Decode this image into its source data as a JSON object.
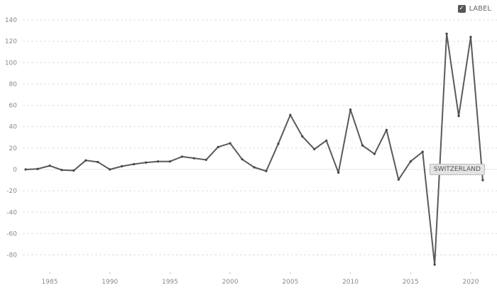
{
  "legend": {
    "label": "LABEL",
    "checked": true
  },
  "tooltip": "SWITZERLAND",
  "chart_data": {
    "type": "line",
    "title": "",
    "xlabel": "",
    "ylabel": "",
    "ylim": [
      -97,
      145
    ],
    "xlim": [
      1983,
      2021.5
    ],
    "grid": true,
    "yticks": [
      140,
      120,
      100,
      80,
      60,
      40,
      20,
      0,
      -20,
      -40,
      -60,
      -80
    ],
    "xticks": [
      1985,
      1990,
      1995,
      2000,
      2005,
      2010,
      2015,
      2020
    ],
    "line_color": "#5a5a5a",
    "series": [
      {
        "x": [
          1983,
          1984,
          1985,
          1986,
          1987,
          1988,
          1989,
          1990,
          1991,
          1992,
          1993,
          1994,
          1995,
          1996,
          1997,
          1998,
          1999,
          2000,
          2001,
          2002,
          2003,
          2004,
          2005,
          2006,
          2007,
          2008,
          2009,
          2010,
          2011,
          2012,
          2013,
          2014,
          2015,
          2016,
          2017,
          2018,
          2019,
          2020,
          2021
        ],
        "values": [
          0,
          0.5,
          3.5,
          -0.5,
          -1,
          8.5,
          7,
          0,
          3,
          5,
          6.5,
          7.5,
          7.5,
          12,
          10.5,
          9,
          21,
          24.5,
          9.5,
          2,
          -1.5,
          24,
          51,
          31,
          19,
          27,
          -3,
          56,
          22.5,
          14.5,
          37,
          -9.5,
          7.5,
          16.5,
          -89,
          127,
          50,
          124,
          -10
        ]
      }
    ]
  }
}
